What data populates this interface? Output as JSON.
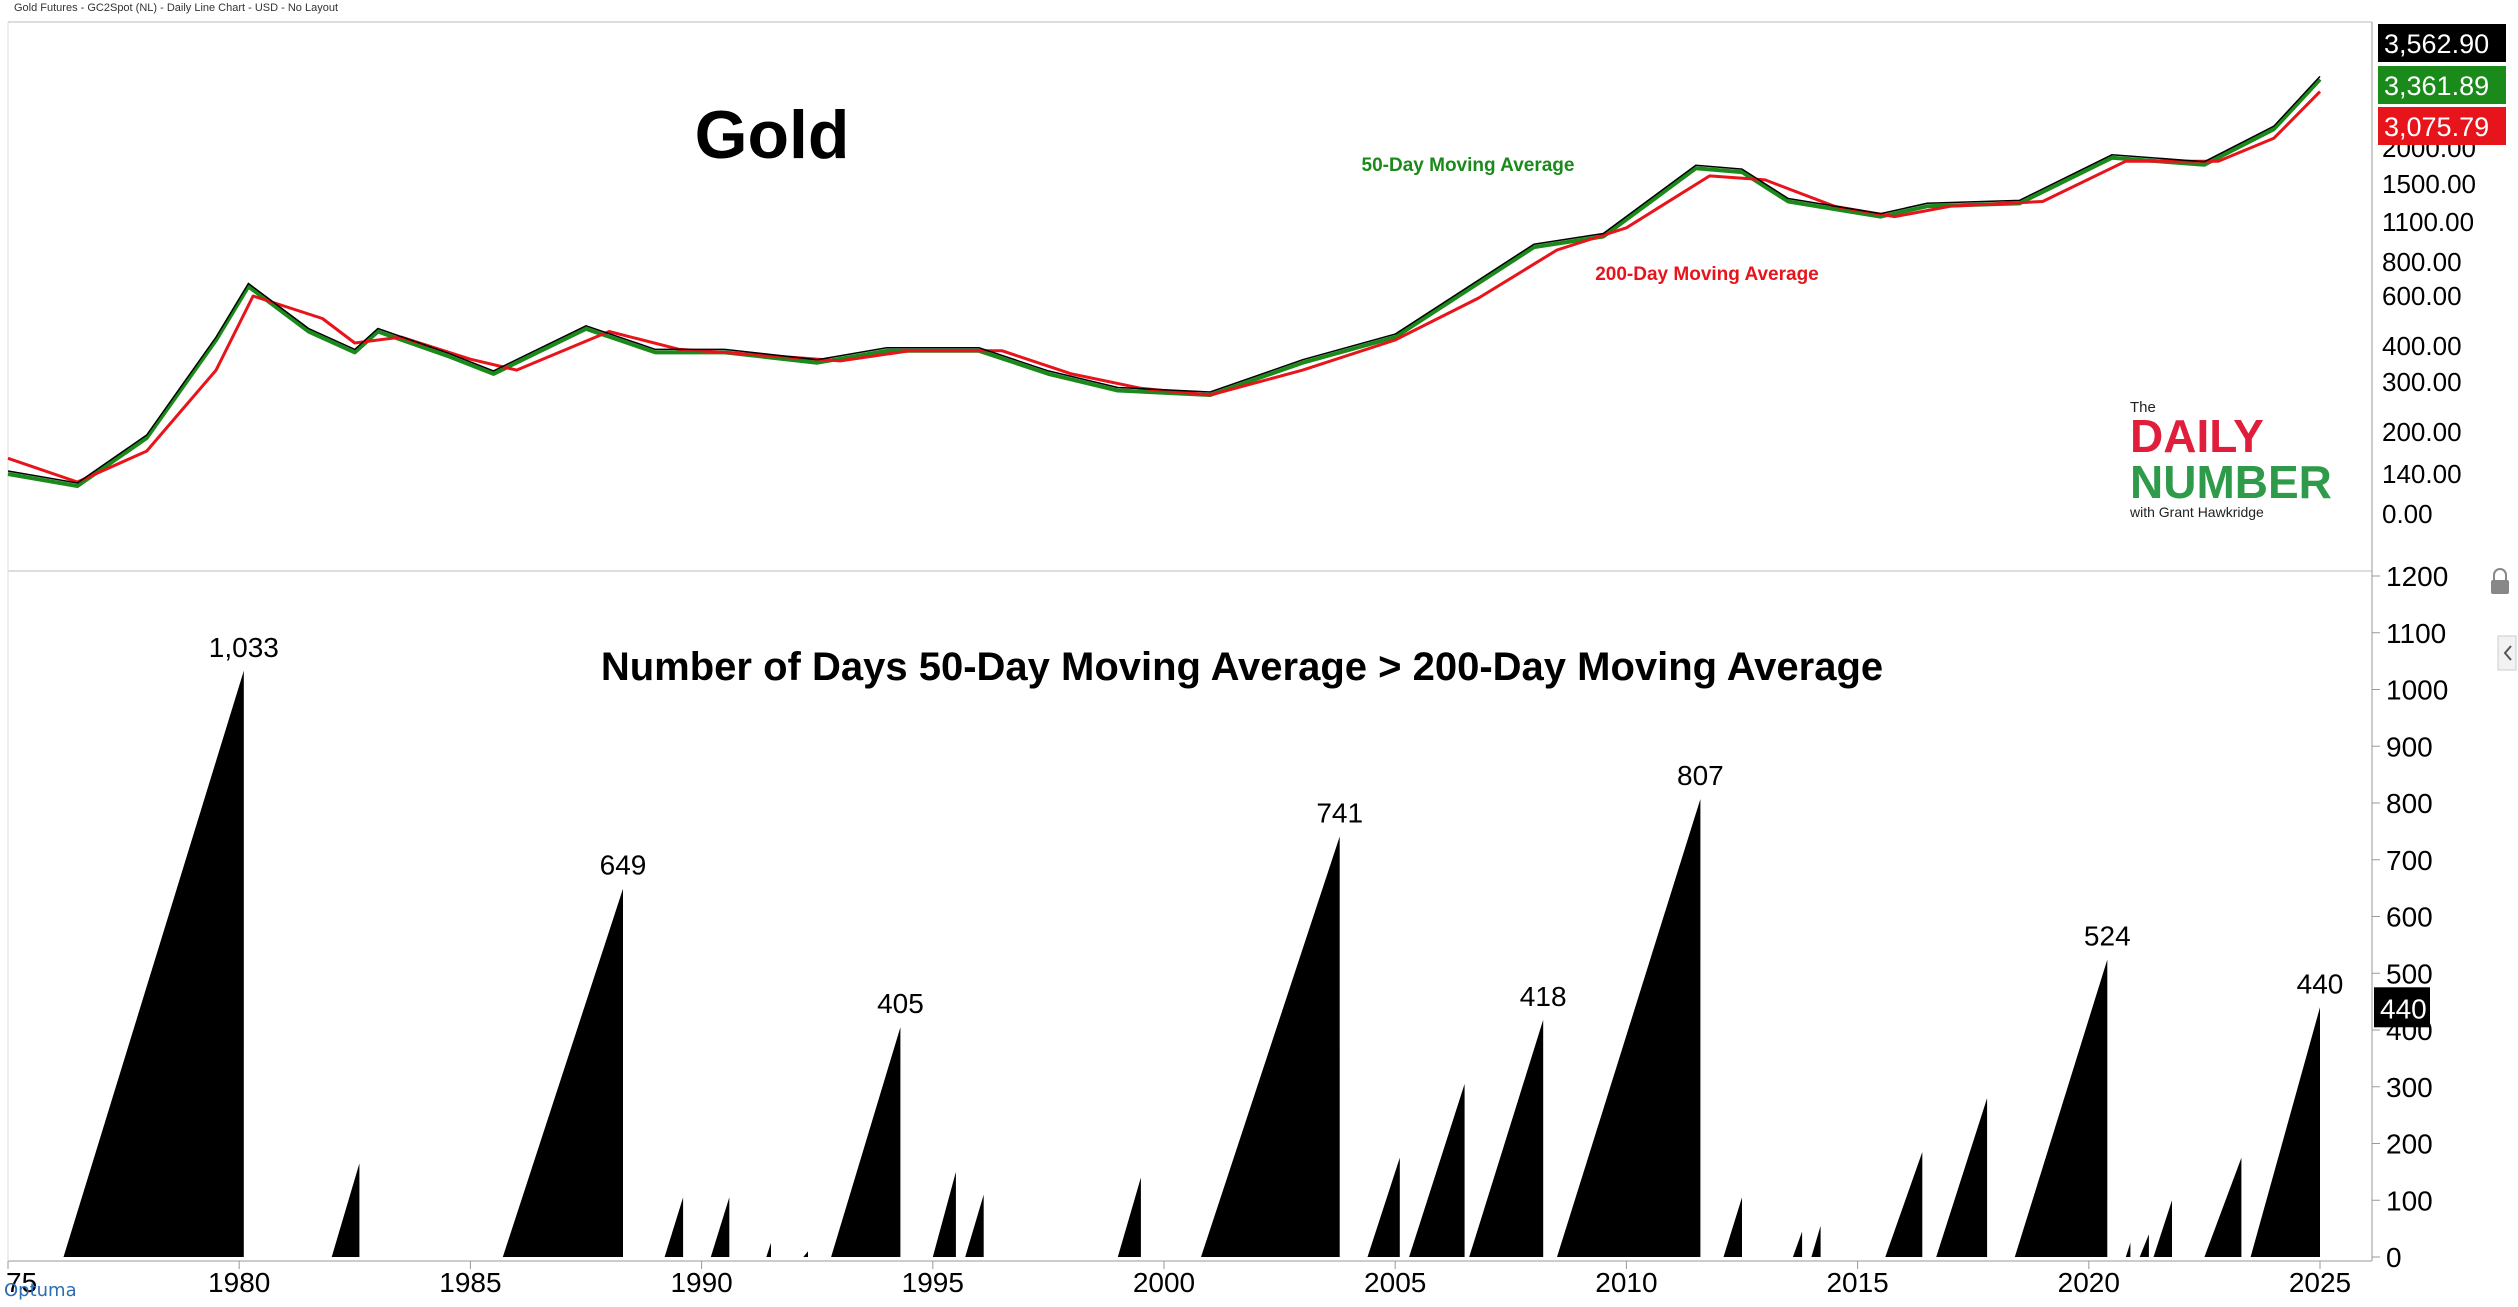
{
  "header": {
    "chart_info": "Gold Futures - GC2Spot (NL) - Daily Line Chart - USD - No Layout"
  },
  "upper_panel": {
    "title": "Gold",
    "label_ma50": "50-Day Moving Average",
    "label_ma200": "200-Day Moving Average",
    "y_ticks": [
      "2000.00",
      "1500.00",
      "1100.00",
      "800.00",
      "600.00",
      "400.00",
      "300.00",
      "200.00",
      "140.00",
      "0.00"
    ],
    "price_badges": [
      {
        "value": "3,562.90",
        "color": "#000000"
      },
      {
        "value": "3,361.89",
        "color": "#1a8a1a"
      },
      {
        "value": "3,075.79",
        "color": "#e8141b"
      }
    ],
    "colors": {
      "price": "#000000",
      "ma50": "#1a8a1a",
      "ma200": "#e8141b"
    }
  },
  "lower_panel": {
    "title": "Number of Days 50-Day Moving Average > 200-Day Moving Average",
    "y_ticks": [
      "1200",
      "1100",
      "1000",
      "900",
      "800",
      "700",
      "600",
      "500",
      "400",
      "300",
      "200",
      "100",
      "0"
    ],
    "current_badge": "440"
  },
  "logo": {
    "the": "The",
    "line1": "DAILY",
    "line2": "NUMBER",
    "tagline": "with Grant Hawkridge",
    "color_red": "#e01e3c",
    "color_green": "#2e9a4a"
  },
  "x_axis": {
    "ticks": [
      "75",
      "1980",
      "1985",
      "1990",
      "1995",
      "2000",
      "2005",
      "2010",
      "2015",
      "2020",
      "2025"
    ]
  },
  "footer": {
    "brand": "Optuma"
  },
  "chart_data": [
    {
      "type": "line",
      "title": "Gold",
      "series": [
        {
          "name": "50-Day Moving Average",
          "points": [
            [
              1975.0,
              140
            ],
            [
              1976.5,
              110
            ],
            [
              1978.0,
              190
            ],
            [
              1979.5,
              420
            ],
            [
              1980.2,
              650
            ],
            [
              1981.5,
              450
            ],
            [
              1982.5,
              380
            ],
            [
              1983.0,
              450
            ],
            [
              1984.5,
              370
            ],
            [
              1985.5,
              320
            ],
            [
              1987.5,
              460
            ],
            [
              1989.0,
              380
            ],
            [
              1990.5,
              380
            ],
            [
              1992.5,
              350
            ],
            [
              1994.0,
              385
            ],
            [
              1996.0,
              385
            ],
            [
              1997.5,
              320
            ],
            [
              1999.0,
              280
            ],
            [
              2001.0,
              270
            ],
            [
              2003.0,
              350
            ],
            [
              2005.0,
              430
            ],
            [
              2006.5,
              620
            ],
            [
              2008.0,
              900
            ],
            [
              2009.5,
              980
            ],
            [
              2011.5,
              1700
            ],
            [
              2012.5,
              1650
            ],
            [
              2013.5,
              1300
            ],
            [
              2015.5,
              1150
            ],
            [
              2016.5,
              1250
            ],
            [
              2018.5,
              1280
            ],
            [
              2020.5,
              1850
            ],
            [
              2022.5,
              1750
            ],
            [
              2024.0,
              2300
            ],
            [
              2025.0,
              3361.89
            ]
          ]
        },
        {
          "name": "200-Day Moving Average",
          "points": [
            [
              1975.0,
              160
            ],
            [
              1976.5,
              120
            ],
            [
              1978.0,
              170
            ],
            [
              1979.5,
              330
            ],
            [
              1980.3,
              600
            ],
            [
              1981.8,
              500
            ],
            [
              1982.5,
              410
            ],
            [
              1983.5,
              430
            ],
            [
              1985.0,
              360
            ],
            [
              1986.0,
              330
            ],
            [
              1988.0,
              450
            ],
            [
              1989.5,
              390
            ],
            [
              1991.0,
              375
            ],
            [
              1993.0,
              355
            ],
            [
              1994.5,
              385
            ],
            [
              1996.5,
              385
            ],
            [
              1998.0,
              320
            ],
            [
              1999.5,
              285
            ],
            [
              2001.0,
              270
            ],
            [
              2003.0,
              330
            ],
            [
              2005.0,
              420
            ],
            [
              2006.8,
              590
            ],
            [
              2008.5,
              880
            ],
            [
              2010.0,
              1050
            ],
            [
              2011.8,
              1600
            ],
            [
              2013.0,
              1550
            ],
            [
              2014.5,
              1250
            ],
            [
              2015.8,
              1150
            ],
            [
              2017.0,
              1250
            ],
            [
              2019.0,
              1300
            ],
            [
              2020.8,
              1800
            ],
            [
              2022.8,
              1800
            ],
            [
              2024.0,
              2150
            ],
            [
              2025.0,
              3075.79
            ]
          ]
        }
      ]
    },
    {
      "type": "area",
      "title": "Number of Days 50-Day Moving Average > 200-Day Moving Average",
      "ylim": [
        0,
        1200
      ],
      "episodes": [
        {
          "start": 1976.2,
          "end": 1980.1,
          "peak": 1033,
          "label": "1,033"
        },
        {
          "start": 1982.0,
          "end": 1982.6,
          "peak": 165
        },
        {
          "start": 1985.7,
          "end": 1988.3,
          "peak": 649,
          "label": "649"
        },
        {
          "start": 1989.2,
          "end": 1989.6,
          "peak": 105
        },
        {
          "start": 1990.2,
          "end": 1990.6,
          "peak": 105
        },
        {
          "start": 1991.4,
          "end": 1991.5,
          "peak": 25
        },
        {
          "start": 1992.2,
          "end": 1992.3,
          "peak": 10
        },
        {
          "start": 1992.8,
          "end": 1994.3,
          "peak": 405,
          "label": "405"
        },
        {
          "start": 1995.0,
          "end": 1995.5,
          "peak": 150
        },
        {
          "start": 1995.7,
          "end": 1996.1,
          "peak": 110
        },
        {
          "start": 1999.0,
          "end": 1999.5,
          "peak": 140
        },
        {
          "start": 2000.8,
          "end": 2003.8,
          "peak": 741,
          "label": "741"
        },
        {
          "start": 2004.4,
          "end": 2005.1,
          "peak": 175
        },
        {
          "start": 2005.3,
          "end": 2006.5,
          "peak": 305
        },
        {
          "start": 2006.6,
          "end": 2008.2,
          "peak": 418,
          "label": "418"
        },
        {
          "start": 2008.5,
          "end": 2011.6,
          "peak": 807,
          "label": "807"
        },
        {
          "start": 2012.1,
          "end": 2012.5,
          "peak": 105
        },
        {
          "start": 2013.6,
          "end": 2013.8,
          "peak": 45
        },
        {
          "start": 2014.0,
          "end": 2014.2,
          "peak": 55
        },
        {
          "start": 2015.6,
          "end": 2016.4,
          "peak": 185
        },
        {
          "start": 2016.7,
          "end": 2017.8,
          "peak": 280
        },
        {
          "start": 2018.4,
          "end": 2020.4,
          "peak": 524,
          "label": "524"
        },
        {
          "start": 2020.8,
          "end": 2020.9,
          "peak": 25
        },
        {
          "start": 2021.1,
          "end": 2021.3,
          "peak": 40
        },
        {
          "start": 2021.4,
          "end": 2021.8,
          "peak": 100
        },
        {
          "start": 2022.5,
          "end": 2023.3,
          "peak": 175
        },
        {
          "start": 2023.5,
          "end": 2025.0,
          "peak": 440,
          "label": "440"
        }
      ]
    }
  ]
}
